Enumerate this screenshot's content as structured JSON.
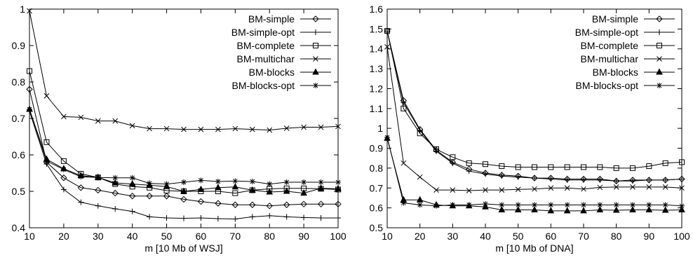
{
  "chart_data": [
    {
      "type": "line",
      "xlabel": "m [10 Mb of WSJ]",
      "ylabel": "",
      "xlim": [
        10,
        100
      ],
      "ylim": [
        0.4,
        1.0
      ],
      "xticks": [
        "10",
        "20",
        "30",
        "40",
        "50",
        "60",
        "70",
        "80",
        "90",
        "100"
      ],
      "yticks": [
        "0.4",
        "0.5",
        "0.6",
        "0.7",
        "0.8",
        "0.9",
        "1"
      ],
      "legend_position": "top-right",
      "grid": false,
      "x": [
        10,
        15,
        20,
        25,
        30,
        35,
        40,
        45,
        50,
        55,
        60,
        65,
        70,
        75,
        80,
        85,
        90,
        95,
        100
      ],
      "series": [
        {
          "name": "BM-simple",
          "marker": "diamond",
          "values": [
            0.78,
            0.58,
            0.537,
            0.51,
            0.503,
            0.495,
            0.487,
            0.487,
            0.487,
            0.478,
            0.472,
            0.467,
            0.463,
            0.463,
            0.46,
            0.463,
            0.465,
            0.465,
            0.465
          ]
        },
        {
          "name": "BM-simple-opt",
          "marker": "plus",
          "values": [
            0.72,
            0.575,
            0.505,
            0.47,
            0.46,
            0.452,
            0.445,
            0.43,
            0.427,
            0.426,
            0.427,
            0.425,
            0.424,
            0.43,
            0.433,
            0.43,
            0.428,
            0.427,
            0.427
          ]
        },
        {
          "name": "BM-complete",
          "marker": "square",
          "values": [
            0.83,
            0.635,
            0.583,
            0.548,
            0.538,
            0.52,
            0.513,
            0.51,
            0.502,
            0.5,
            0.5,
            0.5,
            0.495,
            0.503,
            0.507,
            0.508,
            0.508,
            0.507,
            0.505
          ]
        },
        {
          "name": "BM-multichar",
          "marker": "cross",
          "values": [
            0.995,
            0.762,
            0.705,
            0.703,
            0.693,
            0.693,
            0.68,
            0.672,
            0.672,
            0.67,
            0.67,
            0.67,
            0.672,
            0.67,
            0.668,
            0.673,
            0.676,
            0.676,
            0.678
          ]
        },
        {
          "name": "BM-blocks",
          "marker": "triangle",
          "values": [
            0.725,
            0.588,
            0.562,
            0.543,
            0.538,
            0.523,
            0.52,
            0.517,
            0.513,
            0.5,
            0.505,
            0.51,
            0.512,
            0.503,
            0.498,
            0.5,
            0.495,
            0.508,
            0.507
          ]
        },
        {
          "name": "BM-blocks-opt",
          "marker": "star",
          "values": [
            0.725,
            0.583,
            0.56,
            0.54,
            0.538,
            0.537,
            0.537,
            0.522,
            0.52,
            0.525,
            0.53,
            0.527,
            0.528,
            0.527,
            0.52,
            0.525,
            0.525,
            0.525,
            0.525
          ]
        }
      ]
    },
    {
      "type": "line",
      "xlabel": "m [10 Mb of DNA]",
      "ylabel": "",
      "xlim": [
        10,
        100
      ],
      "ylim": [
        0.5,
        1.6
      ],
      "xticks": [
        "10",
        "20",
        "30",
        "40",
        "50",
        "60",
        "70",
        "80",
        "90",
        "100"
      ],
      "yticks": [
        "0.5",
        "0.6",
        "0.7",
        "0.8",
        "0.9",
        "1",
        "1.1",
        "1.2",
        "1.3",
        "1.4",
        "1.5",
        "1.6"
      ],
      "legend_position": "top-right",
      "grid": false,
      "x": [
        10,
        15,
        20,
        25,
        30,
        35,
        40,
        45,
        50,
        55,
        60,
        65,
        70,
        75,
        80,
        85,
        90,
        95,
        100
      ],
      "series": [
        {
          "name": "BM-simple",
          "marker": "diamond",
          "values": [
            1.49,
            1.14,
            0.995,
            0.89,
            0.83,
            0.795,
            0.775,
            0.765,
            0.76,
            0.75,
            0.75,
            0.745,
            0.745,
            0.745,
            0.735,
            0.74,
            0.74,
            0.74,
            0.745
          ]
        },
        {
          "name": "BM-simple-opt",
          "marker": "plus",
          "values": [
            1.49,
            1.13,
            0.99,
            0.885,
            0.825,
            0.785,
            0.77,
            0.76,
            0.755,
            0.75,
            0.745,
            0.74,
            0.74,
            0.74,
            0.735,
            0.735,
            0.74,
            0.74,
            0.745
          ]
        },
        {
          "name": "BM-complete",
          "marker": "square",
          "values": [
            1.49,
            1.1,
            0.975,
            0.895,
            0.855,
            0.825,
            0.82,
            0.81,
            0.805,
            0.805,
            0.805,
            0.805,
            0.805,
            0.805,
            0.8,
            0.8,
            0.81,
            0.825,
            0.83
          ]
        },
        {
          "name": "BM-multichar",
          "marker": "cross",
          "values": [
            1.41,
            0.825,
            0.755,
            0.69,
            0.69,
            0.687,
            0.69,
            0.69,
            0.693,
            0.695,
            0.7,
            0.7,
            0.695,
            0.703,
            0.705,
            0.705,
            0.705,
            0.705,
            0.7
          ]
        },
        {
          "name": "BM-blocks",
          "marker": "triangle",
          "values": [
            0.95,
            0.64,
            0.64,
            0.615,
            0.61,
            0.61,
            0.605,
            0.59,
            0.59,
            0.59,
            0.585,
            0.585,
            0.585,
            0.59,
            0.588,
            0.59,
            0.59,
            0.588,
            0.59
          ]
        },
        {
          "name": "BM-blocks-opt",
          "marker": "star",
          "values": [
            0.955,
            0.625,
            0.615,
            0.61,
            0.615,
            0.615,
            0.62,
            0.615,
            0.615,
            0.615,
            0.615,
            0.615,
            0.615,
            0.615,
            0.615,
            0.615,
            0.615,
            0.615,
            0.61
          ]
        }
      ]
    }
  ]
}
